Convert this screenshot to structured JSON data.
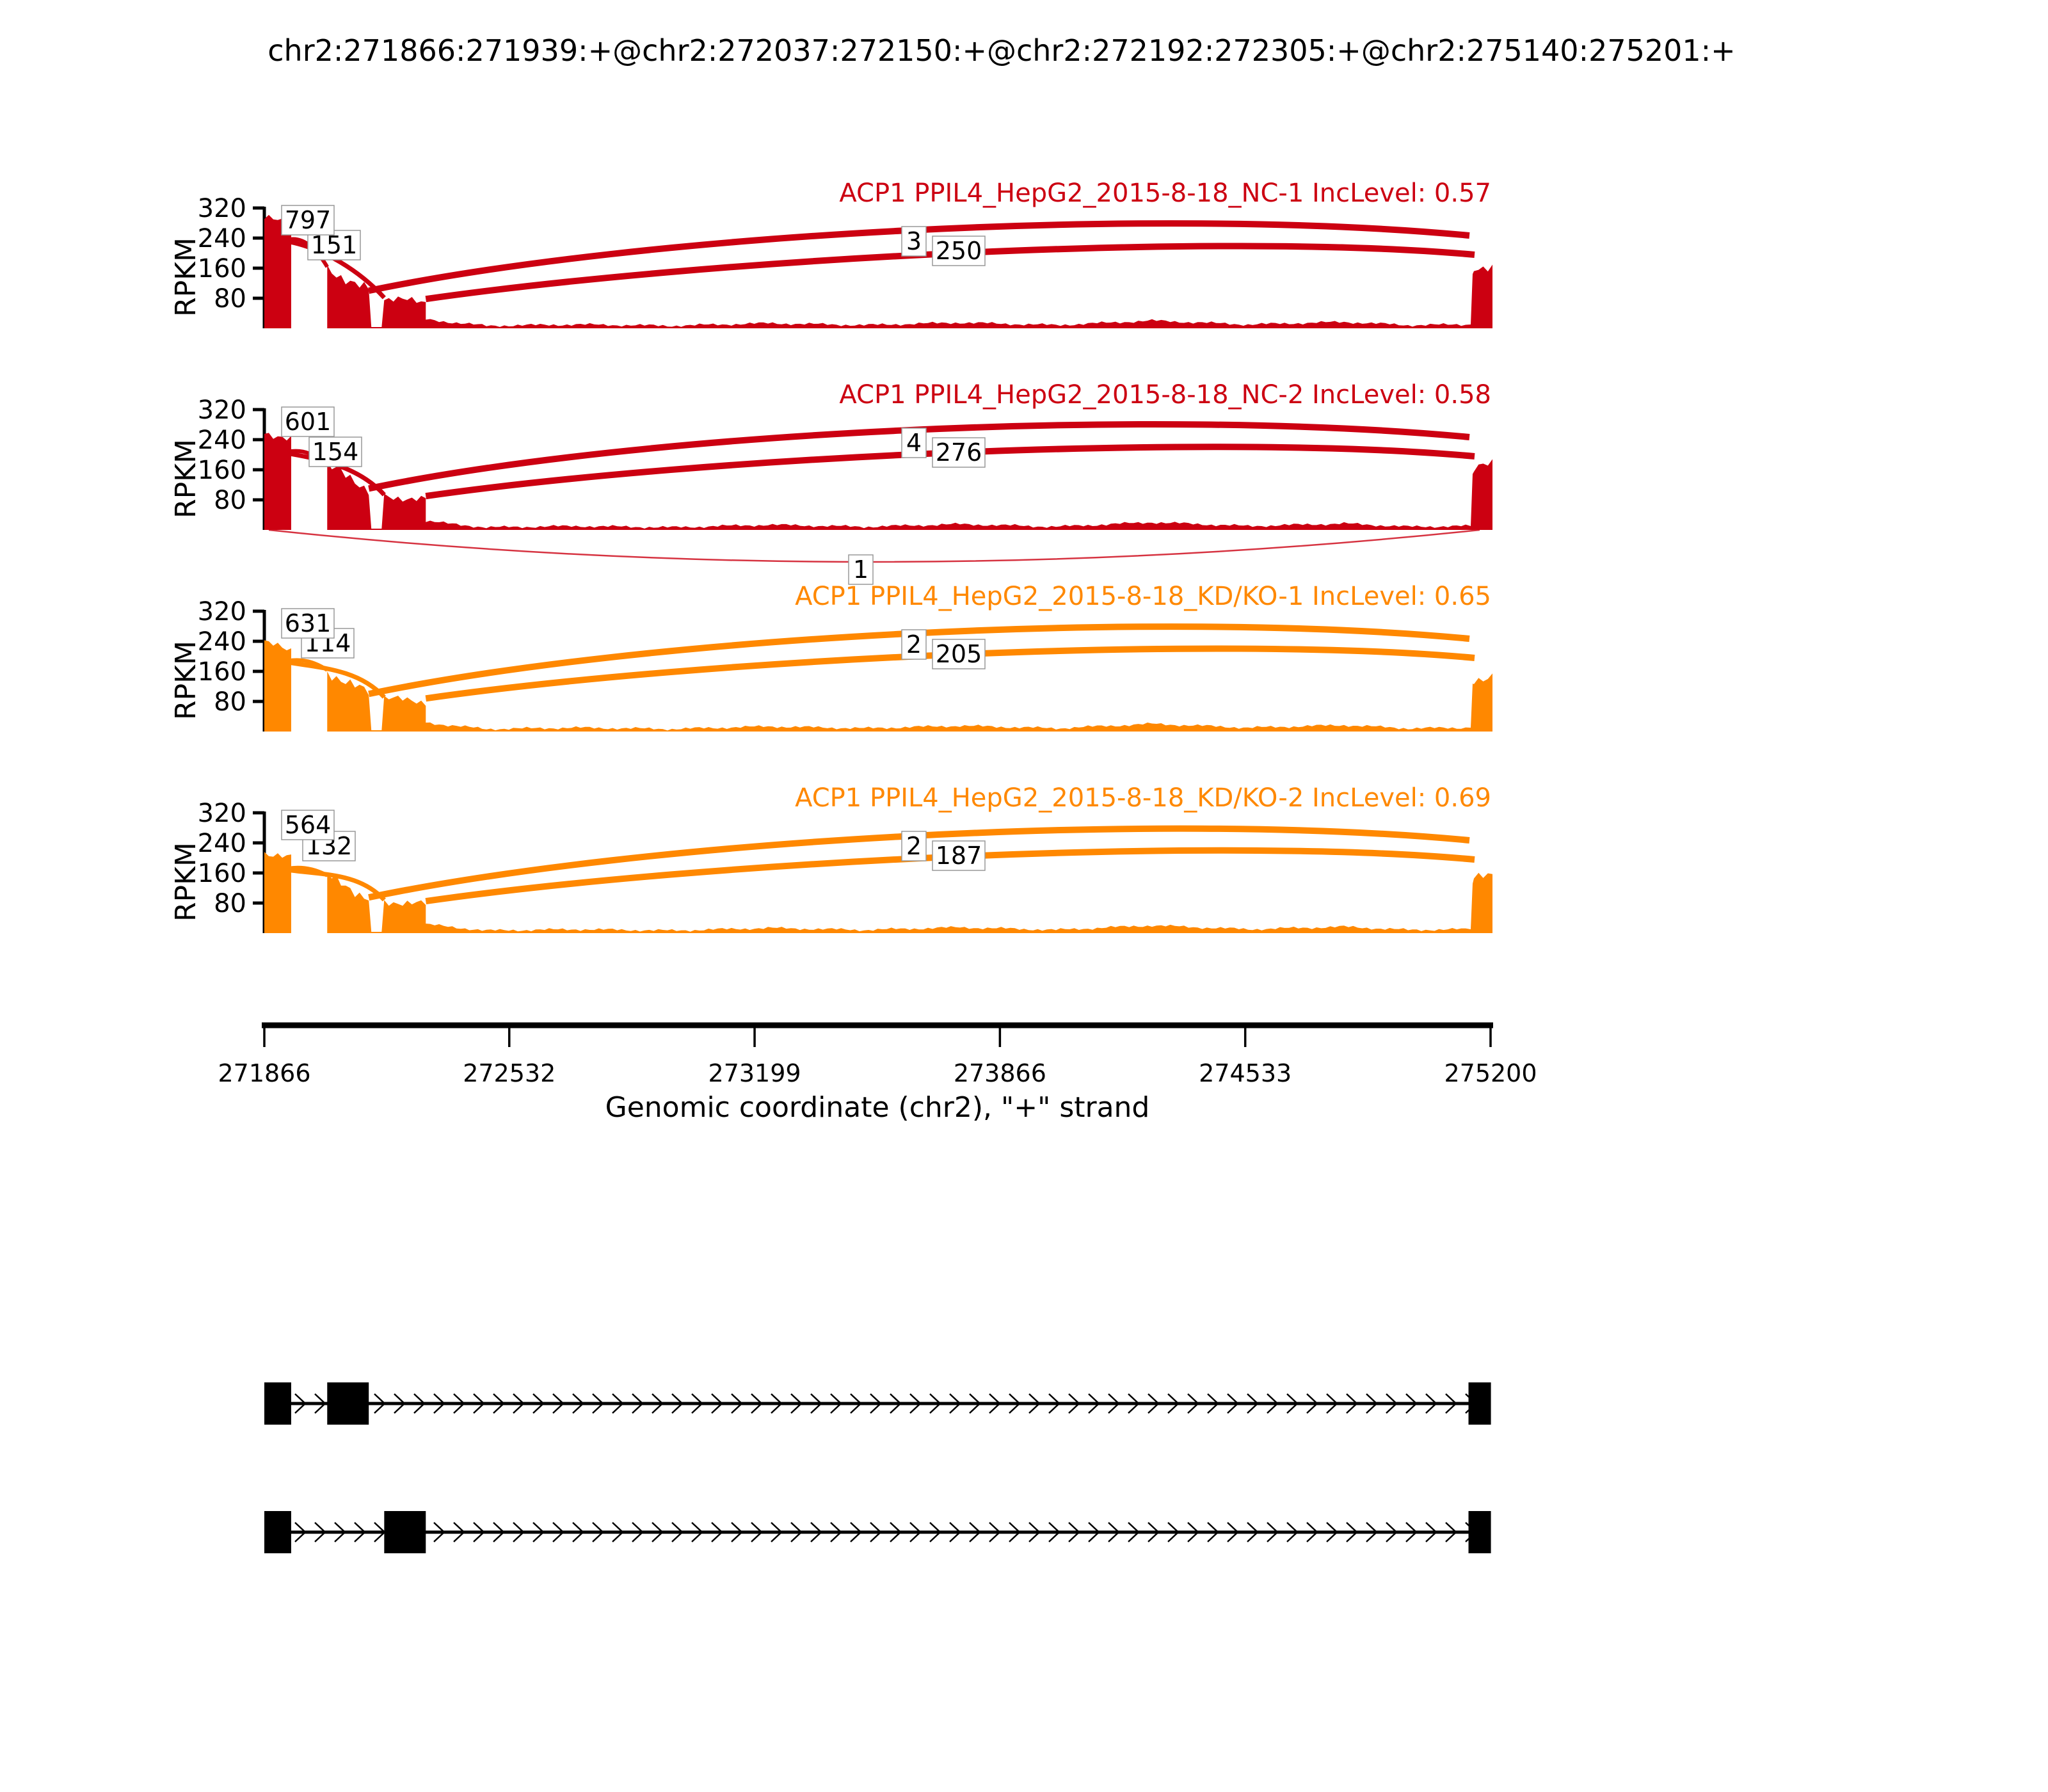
{
  "title": "chr2:271866:271939:+@chr2:272037:272150:+@chr2:272192:272305:+@chr2:275140:275201:+",
  "colors": {
    "nc_red": "#CC0011",
    "kd_orange": "#FF8800",
    "text_black": "#000000",
    "label_box_border": "#999999",
    "label_box_fill": "#ffffff"
  },
  "y_axis": {
    "label": "RPKM",
    "ticks": [
      "80",
      "160",
      "240",
      "320"
    ],
    "max": 320
  },
  "x_axis": {
    "label": "Genomic coordinate (chr2), \"+\" strand",
    "ticks": [
      "271866",
      "272532",
      "273199",
      "273866",
      "274533",
      "275200"
    ],
    "start": 271866,
    "end": 275200
  },
  "region": {
    "chrom": "chr2",
    "strand": "+",
    "exons": {
      "e1": [
        271866,
        271939
      ],
      "e2a": [
        272037,
        272150
      ],
      "e2b": [
        272192,
        272305
      ],
      "e3": [
        275140,
        275201
      ]
    }
  },
  "tracks": [
    {
      "title": "ACP1 PPIL4_HepG2_2015-8-18_NC-1 IncLevel: 0.57",
      "color": "#CC0011",
      "inc_level": "0.57",
      "junctions": {
        "e1_e2a": "797",
        "e1_e2b": "151",
        "e2a_e3_visible": "3",
        "e2b_e3": "250"
      },
      "coverage_rpkm": {
        "e1": 295,
        "e2a_start": 160,
        "e2a_end": 100,
        "e2b": 78,
        "e3": 170
      },
      "below_arc_label": null
    },
    {
      "title": "ACP1 PPIL4_HepG2_2015-8-18_NC-2 IncLevel: 0.58",
      "color": "#CC0011",
      "inc_level": "0.58",
      "junctions": {
        "e1_e2a": "601",
        "e1_e2b": "154",
        "e2a_e3_visible": "4",
        "e2b_e3": "276"
      },
      "coverage_rpkm": {
        "e1": 260,
        "e2a_start": 170,
        "e2a_end": 110,
        "e2b": 90,
        "e3": 175
      },
      "below_arc_label": "1"
    },
    {
      "title": "ACP1 PPIL4_HepG2_2015-8-18_KD/KO-1 IncLevel: 0.65",
      "color": "#FF8800",
      "inc_level": "0.65",
      "junctions": {
        "e1_e2a": "631",
        "e1_e2b": "114",
        "e2a_e3_visible": "2",
        "e2b_e3": "205"
      },
      "coverage_rpkm": {
        "e1": 235,
        "e2a_start": 160,
        "e2a_end": 100,
        "e2b": 88,
        "e3": 150
      },
      "below_arc_label": null
    },
    {
      "title": "ACP1 PPIL4_HepG2_2015-8-18_KD/KO-2 IncLevel: 0.69",
      "color": "#FF8800",
      "inc_level": "0.69",
      "junctions": {
        "e1_e2a": "564",
        "e1_e2b": "132",
        "e2a_e3_visible": "2",
        "e2b_e3": "187"
      },
      "coverage_rpkm": {
        "e1": 215,
        "e2a_start": 150,
        "e2a_end": 95,
        "e2b": 85,
        "e3": 155
      },
      "below_arc_label": null
    }
  ],
  "gene_diagram": {
    "isoforms": [
      {
        "exons": [
          "e1",
          "e2a",
          "e3"
        ]
      },
      {
        "exons": [
          "e1",
          "e2b",
          "e3"
        ]
      }
    ]
  },
  "chart_data": {
    "type": "sashimi",
    "title": "chr2:271866:271939:+@chr2:272037:272150:+@chr2:272192:272305:+@chr2:275140:275201:+",
    "xlabel": "Genomic coordinate (chr2), \"+\" strand",
    "ylabel": "RPKM",
    "xlim": [
      271866,
      275200
    ],
    "ylim": [
      0,
      320
    ],
    "x_ticks": [
      271866,
      272532,
      273199,
      273866,
      274533,
      275200
    ],
    "y_ticks": [
      80,
      160,
      240,
      320
    ],
    "event_type": "MXE",
    "event_exons": {
      "upstream_e1": [
        271866,
        271939
      ],
      "mxe_exon_a": [
        272037,
        272150
      ],
      "mxe_exon_b": [
        272192,
        272305
      ],
      "downstream_e3": [
        275140,
        275201
      ]
    },
    "samples": [
      {
        "name": "ACP1 PPIL4_HepG2_2015-8-18_NC-1",
        "color": "#CC0011",
        "inc_level": 0.57,
        "junction_reads": {
          "e1-e2a": "797",
          "e1-e2b": "151",
          "e2a-e3": "3 (partially hidden)",
          "e2b-e3": "250"
        },
        "peak_rpkm": {
          "e1": 295,
          "e2a": 160,
          "e2b": 78,
          "e3": 170
        }
      },
      {
        "name": "ACP1 PPIL4_HepG2_2015-8-18_NC-2",
        "color": "#CC0011",
        "inc_level": 0.58,
        "junction_reads": {
          "e1-e2a": "601",
          "e1-e2b": "154",
          "e2a-e3": "4 (partially hidden)",
          "e2b-e3": "276",
          "e1-e3_below_axis": "1"
        },
        "peak_rpkm": {
          "e1": 260,
          "e2a": 170,
          "e2b": 90,
          "e3": 175
        }
      },
      {
        "name": "ACP1 PPIL4_HepG2_2015-8-18_KD/KO-1",
        "color": "#FF8800",
        "inc_level": 0.65,
        "junction_reads": {
          "e1-e2a": "631",
          "e1-e2b": "114",
          "e2a-e3": "2 (partially hidden)",
          "e2b-e3": "205"
        },
        "peak_rpkm": {
          "e1": 235,
          "e2a": 160,
          "e2b": 88,
          "e3": 150
        }
      },
      {
        "name": "ACP1 PPIL4_HepG2_2015-8-18_KD/KO-2",
        "color": "#FF8800",
        "inc_level": 0.69,
        "junction_reads": {
          "e1-e2a": "564",
          "e1-e2b": "132",
          "e2a-e3": "2 (partially hidden)",
          "e2b-e3": "187"
        },
        "peak_rpkm": {
          "e1": 215,
          "e2a": 150,
          "e2b": 85,
          "e3": 155
        }
      }
    ],
    "isoforms": [
      [
        "e1",
        "e2a",
        "e3"
      ],
      [
        "e1",
        "e2b",
        "e3"
      ]
    ],
    "legend": "none",
    "grid": false
  }
}
